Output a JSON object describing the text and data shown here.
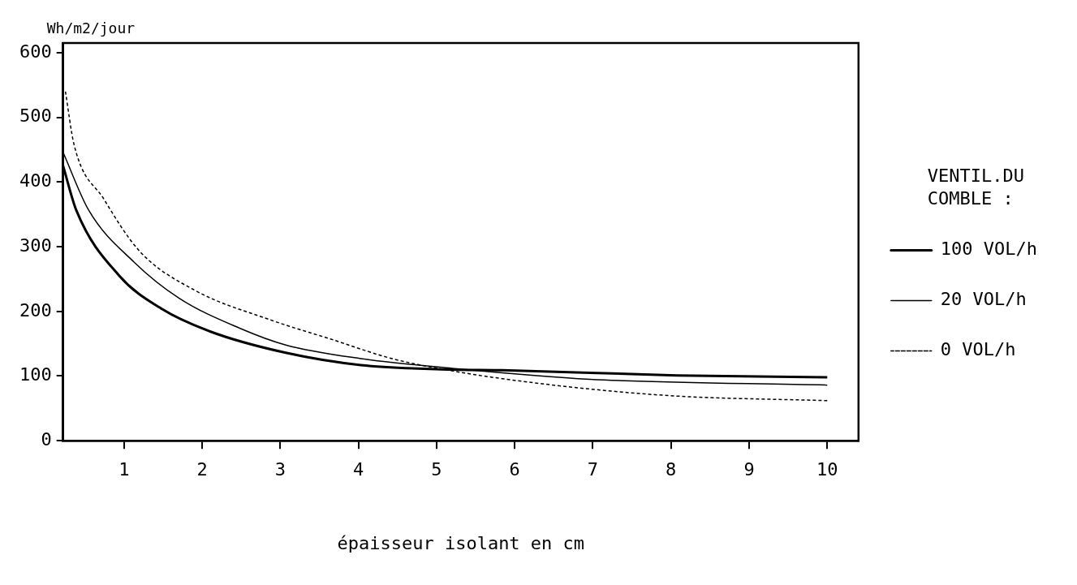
{
  "chart_data": {
    "type": "line",
    "xlabel": "épaisseur isolant en cm",
    "ylabel": "Wh/m2/jour",
    "legend_title": "VENTIL.DU COMBLE :",
    "legend": "right",
    "grid": false,
    "marker": "none",
    "xlim": [
      0.22,
      10.4
    ],
    "xticks": [
      1,
      2,
      3,
      4,
      5,
      6,
      7,
      8,
      9,
      10
    ],
    "ylim": [
      0,
      615
    ],
    "yticks": [
      0,
      100,
      200,
      300,
      400,
      500,
      600
    ],
    "series": [
      {
        "name": "100 VOL/h",
        "color": "#000000",
        "line_style": "solid",
        "x": [
          0.22,
          0.39,
          0.94,
          1.48,
          2.1,
          3.07,
          4.03,
          5.2,
          5.84,
          8.08,
          10
        ],
        "values": [
          425,
          356,
          255,
          204,
          169,
          136,
          117,
          110,
          109,
          101,
          98
        ]
      },
      {
        "name": "20 VOL/h",
        "color": "#000000",
        "line_style": "solid",
        "x": [
          0.22,
          0.55,
          1.13,
          1.71,
          2.48,
          3.07,
          4.03,
          5.2,
          6.96,
          10
        ],
        "values": [
          446,
          356,
          276,
          220,
          174,
          148,
          127,
          112,
          95,
          86
        ]
      },
      {
        "name": "0 VOL/h",
        "color": "#000000",
        "line_style": "dashed",
        "x": [
          0.25,
          0.36,
          0.74,
          1.2,
          1.9,
          2.87,
          3.65,
          4.43,
          5.2,
          5.84,
          6.96,
          8.08,
          10
        ],
        "values": [
          540,
          458,
          374,
          293,
          233,
          187,
          157,
          127,
          108,
          96,
          80,
          69,
          62
        ]
      }
    ]
  }
}
